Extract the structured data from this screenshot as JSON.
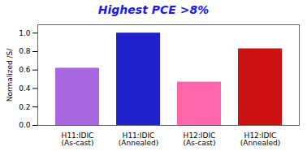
{
  "chart_data": {
    "type": "bar",
    "title": "Highest PCE >8%",
    "categories": [
      "H11:IDIC\n(As-cast)",
      "H11:IDIC\n(Annealed)",
      "H12:IDIC\n(As-cast)",
      "H12:IDIC\n(Annealed)"
    ],
    "values": [
      0.62,
      1.0,
      0.47,
      0.83
    ],
    "colors": [
      "#aa66dd",
      "#2222cc",
      "#ff66aa",
      "#cc1111"
    ],
    "ylabel": "Normalized /S/",
    "ylim": [
      0.0,
      1.09
    ],
    "yticks": [
      {
        "value": 0.0,
        "label": "0.0"
      },
      0.2,
      0.4,
      0.6,
      0.8,
      {
        "value": 1.0,
        "label": "1.0"
      }
    ]
  }
}
